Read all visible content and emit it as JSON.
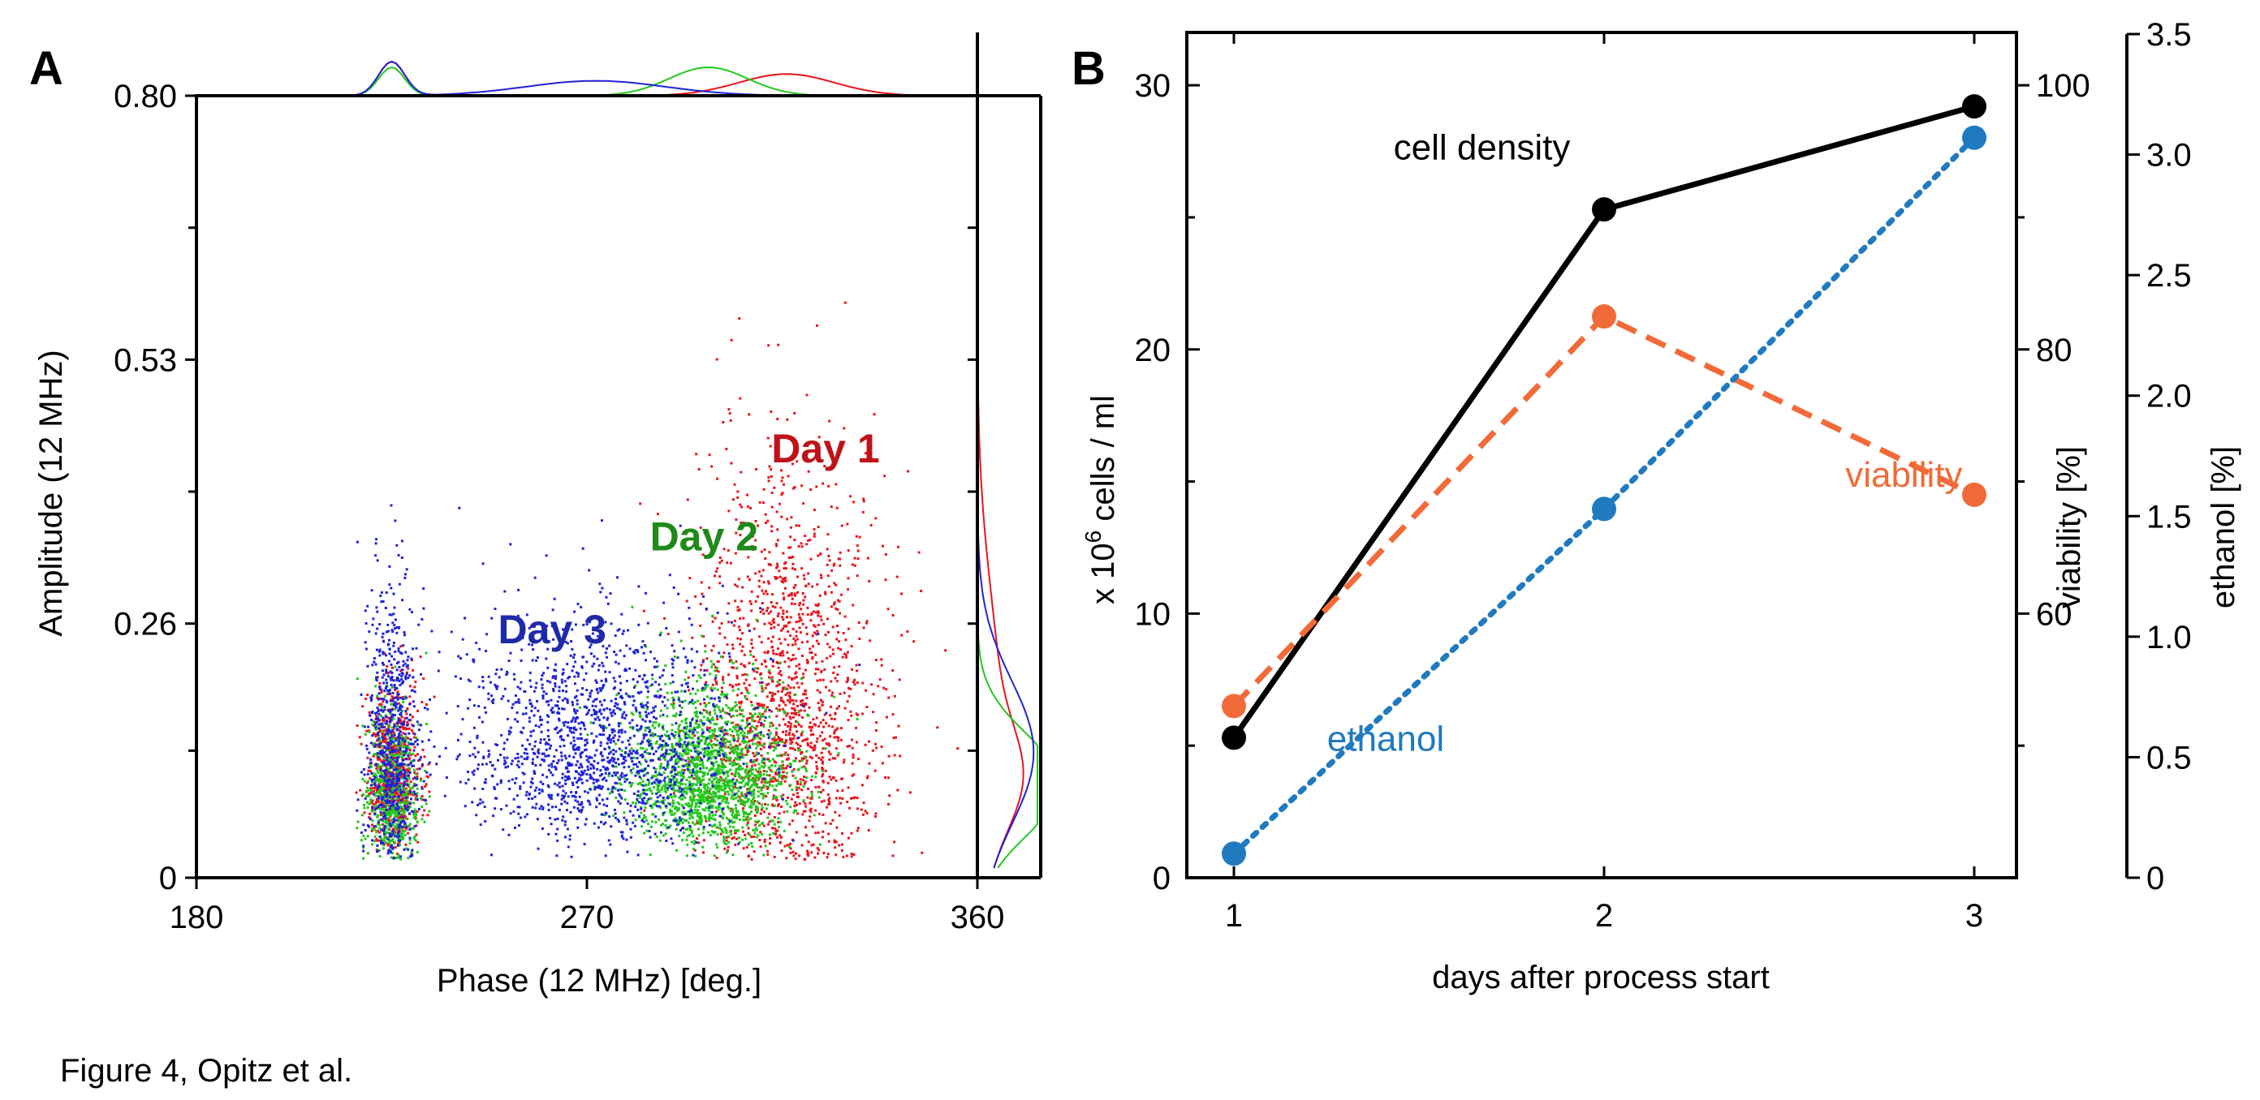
{
  "figure": {
    "caption": "Figure 4, Opitz et al.",
    "panels": [
      {
        "id": "A"
      },
      {
        "id": "B"
      }
    ]
  },
  "colors": {
    "day1": "#e8141c",
    "day2": "#22c81c",
    "day3": "#1f23d8",
    "day1_label": "#c0121a",
    "day2_label": "#1f8a1a",
    "day3_label": "#1f2aa8",
    "cell_density": "#000000",
    "viability": "#f26a38",
    "ethanol": "#1f7ac0"
  },
  "chart_data": [
    {
      "panel": "A",
      "type": "scatter",
      "xlabel": "Phase (12 MHz) [deg.]",
      "ylabel": "Amplitude (12 MHz)",
      "xlim": [
        180,
        360
      ],
      "ylim": [
        0,
        0.8
      ],
      "x_ticks": [
        180,
        270,
        360
      ],
      "y_ticks": [
        0,
        0.26,
        0.53,
        0.8
      ],
      "y_tick_labels": [
        "0",
        "0.26",
        "0.53",
        "0.80"
      ],
      "marginals": {
        "top": "phase density per day",
        "right": "amplitude density per day"
      },
      "series": [
        {
          "name": "Day 1",
          "color": "#e8141c",
          "clusters": [
            {
              "phase_center": 316,
              "phase_sd": 11,
              "amp_center": 0.16,
              "amp_sd": 0.13,
              "share": 0.7
            },
            {
              "phase_center": 225,
              "phase_sd": 3,
              "amp_center": 0.1,
              "amp_sd": 0.05,
              "share": 0.3
            }
          ]
        },
        {
          "name": "Day 2",
          "color": "#22c81c",
          "clusters": [
            {
              "phase_center": 298,
              "phase_sd": 9,
              "amp_center": 0.1,
              "amp_sd": 0.05,
              "share": 0.75
            },
            {
              "phase_center": 225,
              "phase_sd": 3,
              "amp_center": 0.08,
              "amp_sd": 0.05,
              "share": 0.25
            }
          ]
        },
        {
          "name": "Day 3",
          "color": "#1f23d8",
          "clusters": [
            {
              "phase_center": 272,
              "phase_sd": 16,
              "amp_center": 0.13,
              "amp_sd": 0.07,
              "share": 0.7
            },
            {
              "phase_center": 225,
              "phase_sd": 3,
              "amp_center": 0.12,
              "amp_sd": 0.09,
              "share": 0.3
            }
          ]
        }
      ],
      "annotations": [
        {
          "text": "Day 1",
          "series": "Day 1",
          "x": 325,
          "y": 0.425
        },
        {
          "text": "Day 2",
          "series": "Day 2",
          "x": 297,
          "y": 0.335
        },
        {
          "text": "Day 3",
          "series": "Day 3",
          "x": 262,
          "y": 0.24
        }
      ]
    },
    {
      "panel": "B",
      "type": "line",
      "xlabel": "days after process start",
      "x": [
        1,
        2,
        3
      ],
      "x_ticks": [
        1,
        2,
        3
      ],
      "axes": {
        "left": {
          "label_main": "x 10",
          "label_sup": "6",
          "label_rest": " cells / ml",
          "range": [
            0,
            32
          ],
          "ticks": [
            0,
            10,
            20,
            30
          ],
          "minor_ticks": [
            5,
            15,
            25
          ]
        },
        "right1": {
          "label": "viability [%]",
          "range": [
            40,
            104
          ],
          "ticks": [
            60,
            80,
            100
          ],
          "minor_ticks": [
            50,
            70,
            90
          ]
        },
        "right2": {
          "label": "ethanol [%]",
          "range": [
            0,
            3.5
          ],
          "ticks": [
            0,
            0.5,
            1.0,
            1.5,
            2.0,
            2.5,
            3.0,
            3.5
          ],
          "tick_labels": [
            "0",
            "0.5",
            "1.0",
            "1.5",
            "2.0",
            "2.5",
            "3.0",
            "3.5"
          ]
        }
      },
      "series": [
        {
          "name": "cell density",
          "axis": "left",
          "values": [
            5.3,
            25.3,
            29.2
          ],
          "color": "#000000",
          "style": "solid"
        },
        {
          "name": "viability",
          "axis": "right1",
          "values": [
            53,
            82.5,
            69
          ],
          "color": "#f26a38",
          "style": "dashed"
        },
        {
          "name": "ethanol",
          "axis": "right2",
          "values": [
            0.1,
            1.53,
            3.07
          ],
          "color": "#1f7ac0",
          "style": "dotted"
        }
      ],
      "series_labels": [
        {
          "text": "cell density",
          "series": "cell density",
          "x": 1.67,
          "y_left": 27.2
        },
        {
          "text": "viability",
          "series": "viability",
          "x": 2.81,
          "y_left": 14.8
        },
        {
          "text": "ethanol",
          "series": "ethanol",
          "x": 1.41,
          "y_left": 4.8
        }
      ]
    }
  ]
}
